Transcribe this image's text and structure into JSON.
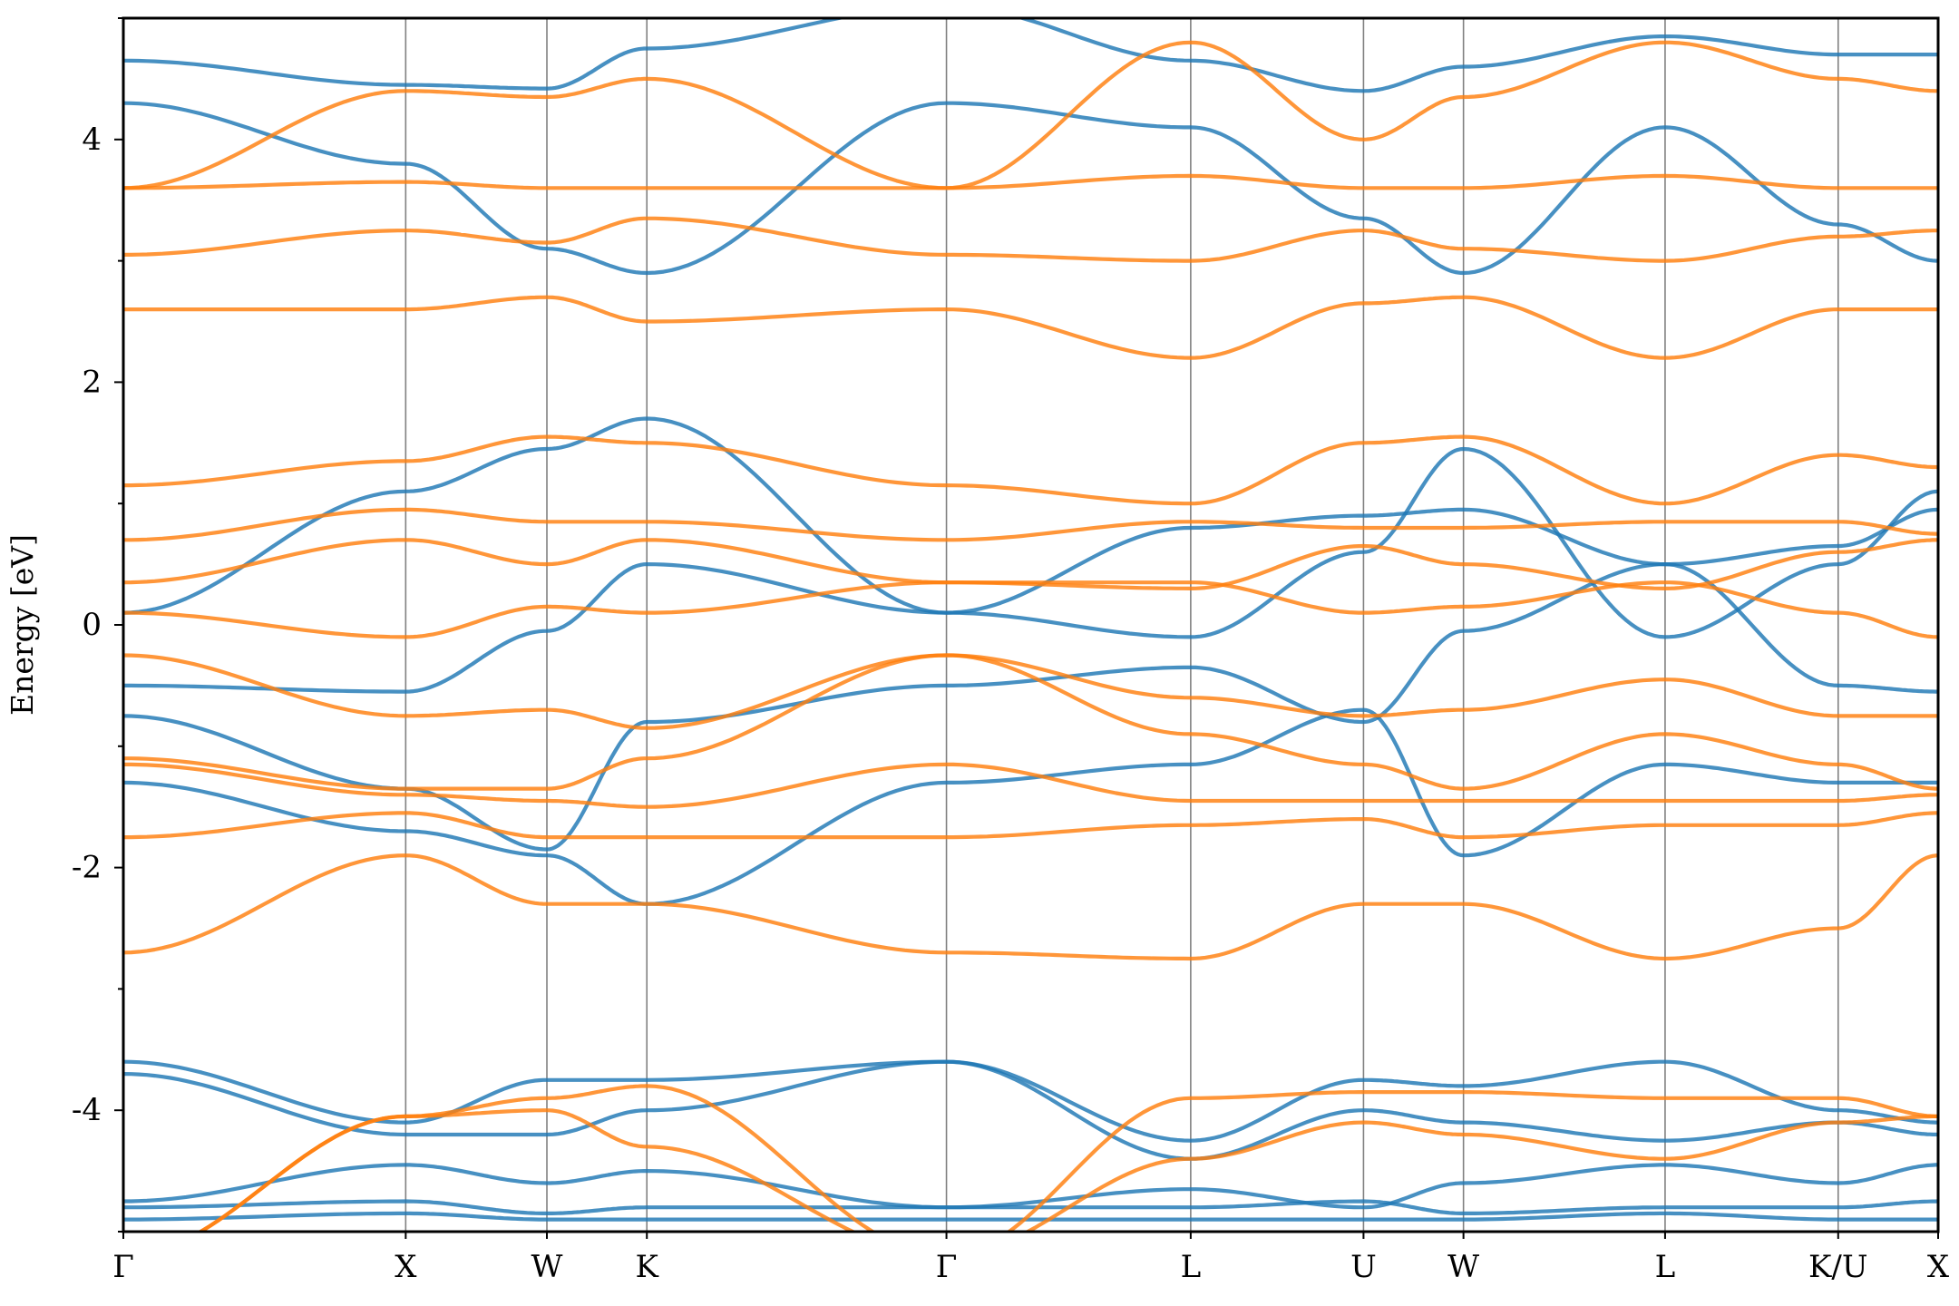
{
  "chart_data": {
    "type": "line",
    "title": "",
    "xlabel": "",
    "ylabel": "Energy [eV]",
    "ylim": [
      -5,
      5
    ],
    "y_ticks": [
      -4,
      -2,
      0,
      2,
      4
    ],
    "y_tick_labels": [
      "-4",
      "-2",
      "0",
      "2",
      "4"
    ],
    "grid": false,
    "legend": "none",
    "k_path_positions": [
      0,
      1.0,
      1.5,
      1.854,
      2.915,
      3.78,
      4.392,
      4.746,
      5.46,
      6.073,
      6.427
    ],
    "k_path_labels": [
      "Γ",
      "X",
      "W",
      "K",
      "Γ",
      "L",
      "U",
      "W",
      "L",
      "K/U",
      "X"
    ],
    "colors": {
      "series_1": "#1f77b4",
      "series_2": "#ff7f0e",
      "kline": "#808080"
    },
    "series": [
      {
        "color": "#1f77b4",
        "bands": [
          [
            4.65,
            4.45,
            4.42,
            4.75,
            5.1,
            4.65,
            4.4,
            4.6,
            4.85,
            4.7,
            4.7
          ],
          [
            4.3,
            3.8,
            3.1,
            2.9,
            4.3,
            4.1,
            3.35,
            2.9,
            4.1,
            3.3,
            3.0
          ],
          [
            0.1,
            1.1,
            1.45,
            1.7,
            0.1,
            -0.1,
            0.6,
            1.45,
            -0.1,
            0.5,
            1.1
          ],
          [
            -0.5,
            -0.55,
            -0.05,
            0.5,
            0.1,
            0.8,
            0.9,
            0.95,
            0.5,
            0.65,
            0.95
          ],
          [
            -0.75,
            -1.35,
            -1.85,
            -0.8,
            -0.5,
            -0.35,
            -0.8,
            -0.05,
            0.5,
            -0.5,
            -0.55
          ],
          [
            -1.3,
            -1.7,
            -1.9,
            -2.3,
            -1.3,
            -1.15,
            -0.7,
            -1.9,
            -1.15,
            -1.3,
            -1.3
          ],
          [
            -3.6,
            -4.1,
            -3.75,
            -3.75,
            -3.6,
            -4.25,
            -3.75,
            -3.8,
            -3.6,
            -4.0,
            -4.1
          ],
          [
            -3.7,
            -4.2,
            -4.2,
            -4.0,
            -3.6,
            -4.4,
            -4.0,
            -4.1,
            -4.25,
            -4.1,
            -4.2
          ],
          [
            -4.75,
            -4.45,
            -4.6,
            -4.5,
            -4.8,
            -4.65,
            -4.8,
            -4.6,
            -4.45,
            -4.6,
            -4.45
          ],
          [
            -4.8,
            -4.75,
            -4.85,
            -4.8,
            -4.8,
            -4.8,
            -4.75,
            -4.85,
            -4.8,
            -4.8,
            -4.75
          ],
          [
            -4.9,
            -4.85,
            -4.9,
            -4.9,
            -4.9,
            -4.9,
            -4.9,
            -4.9,
            -4.85,
            -4.9,
            -4.9
          ]
        ]
      },
      {
        "color": "#ff7f0e",
        "bands": [
          [
            3.6,
            4.4,
            4.35,
            4.5,
            3.6,
            4.8,
            4.0,
            4.35,
            4.8,
            4.5,
            4.4
          ],
          [
            3.6,
            3.65,
            3.6,
            3.6,
            3.6,
            3.7,
            3.6,
            3.6,
            3.7,
            3.6,
            3.6
          ],
          [
            3.05,
            3.25,
            3.15,
            3.35,
            3.05,
            3.0,
            3.25,
            3.1,
            3.0,
            3.2,
            3.25
          ],
          [
            2.6,
            2.6,
            2.7,
            2.5,
            2.6,
            2.2,
            2.65,
            2.7,
            2.2,
            2.6,
            2.6
          ],
          [
            1.15,
            1.35,
            1.55,
            1.5,
            1.15,
            1.0,
            1.5,
            1.55,
            1.0,
            1.4,
            1.3
          ],
          [
            0.7,
            0.95,
            0.85,
            0.85,
            0.7,
            0.85,
            0.8,
            0.8,
            0.85,
            0.85,
            0.75
          ],
          [
            0.35,
            0.7,
            0.5,
            0.7,
            0.35,
            0.3,
            0.65,
            0.5,
            0.3,
            0.6,
            0.7
          ],
          [
            0.1,
            -0.1,
            0.15,
            0.1,
            0.35,
            0.35,
            0.1,
            0.15,
            0.35,
            0.1,
            -0.1
          ],
          [
            -0.25,
            -0.75,
            -0.7,
            -0.85,
            -0.25,
            -0.6,
            -0.75,
            -0.7,
            -0.45,
            -0.75,
            -0.75
          ],
          [
            -1.1,
            -1.35,
            -1.35,
            -1.1,
            -0.25,
            -0.9,
            -1.15,
            -1.35,
            -0.9,
            -1.15,
            -1.35
          ],
          [
            -1.15,
            -1.4,
            -1.45,
            -1.5,
            -1.15,
            -1.45,
            -1.45,
            -1.45,
            -1.45,
            -1.45,
            -1.4
          ],
          [
            -1.75,
            -1.55,
            -1.75,
            -1.75,
            -1.75,
            -1.65,
            -1.6,
            -1.75,
            -1.65,
            -1.65,
            -1.55
          ],
          [
            -2.7,
            -1.9,
            -2.3,
            -2.3,
            -2.7,
            -2.75,
            -2.3,
            -2.3,
            -2.75,
            -2.5,
            -1.9
          ],
          [
            -5.2,
            -4.05,
            -3.9,
            -3.8,
            -5.2,
            -3.9,
            -3.85,
            -3.85,
            -3.9,
            -3.9,
            -4.05
          ],
          [
            -5.2,
            -4.05,
            -4.0,
            -4.3,
            -5.2,
            -4.4,
            -4.1,
            -4.2,
            -4.4,
            -4.1,
            -4.05
          ]
        ]
      }
    ]
  }
}
